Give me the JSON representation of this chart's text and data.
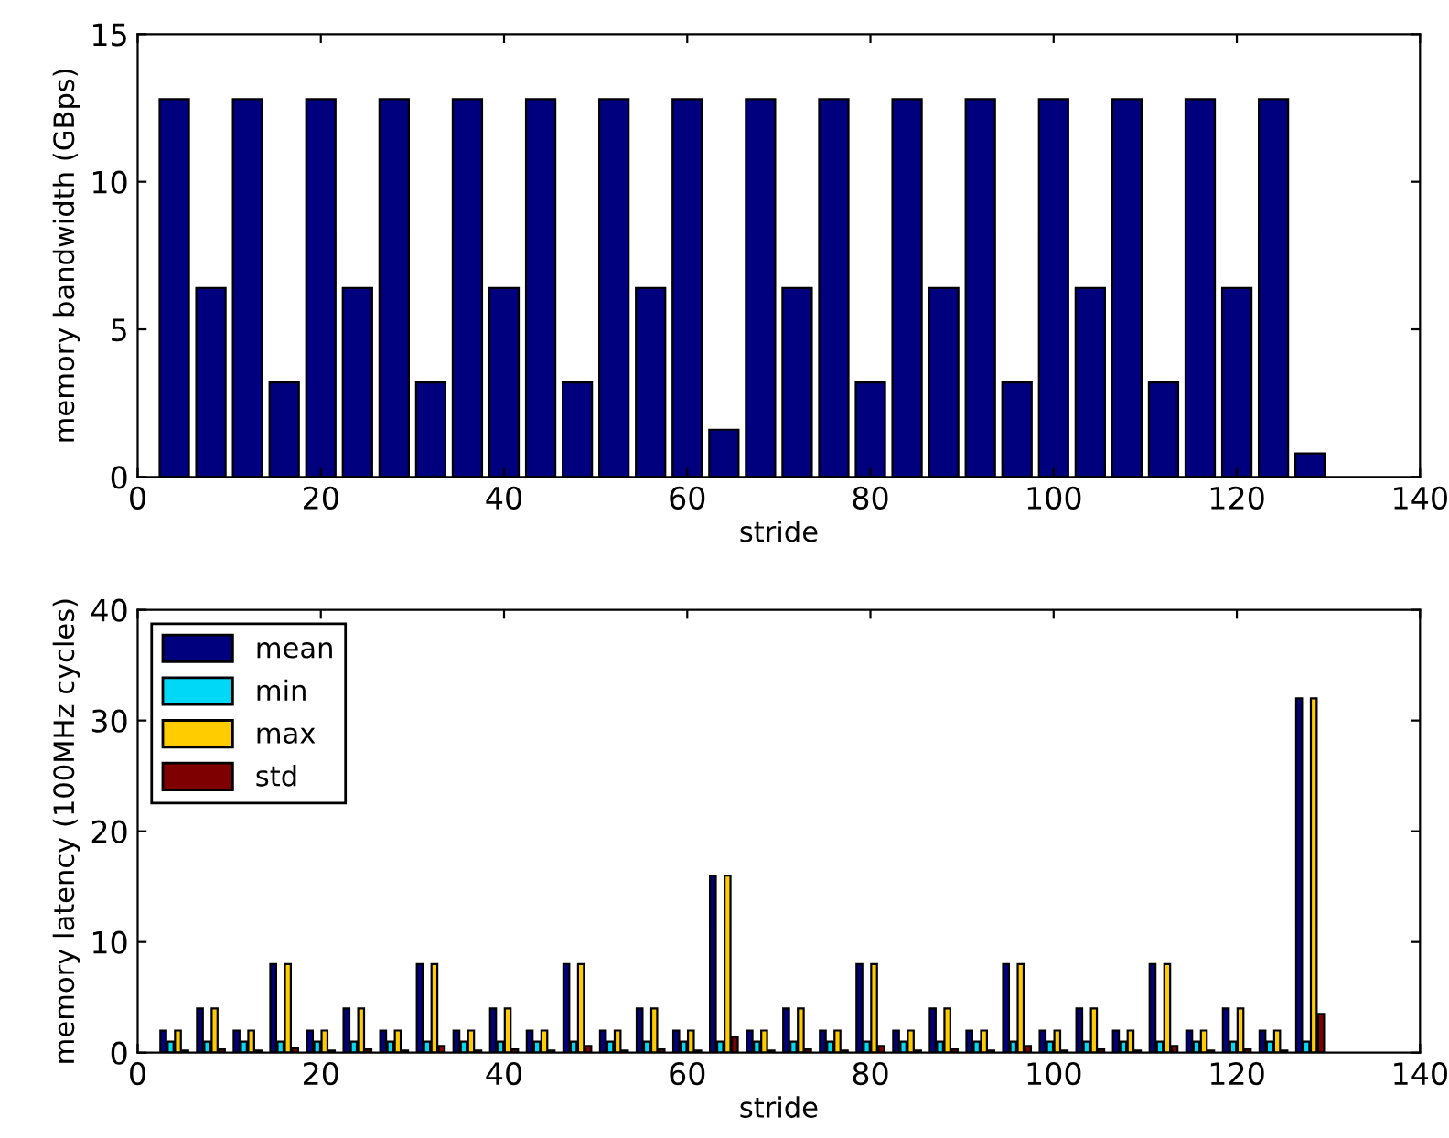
{
  "chart_data": [
    {
      "type": "bar",
      "xlabel": "stride",
      "ylabel": "memory bandwidth (GBps)",
      "x": [
        4,
        8,
        12,
        16,
        20,
        24,
        28,
        32,
        36,
        40,
        44,
        48,
        52,
        56,
        60,
        64,
        68,
        72,
        76,
        80,
        84,
        88,
        92,
        96,
        100,
        104,
        108,
        112,
        116,
        120,
        124,
        128
      ],
      "series": [
        {
          "color": "#00007f",
          "values": [
            12.8,
            6.4,
            12.8,
            3.2,
            12.8,
            6.4,
            12.8,
            3.2,
            12.8,
            6.4,
            12.8,
            3.2,
            12.8,
            6.4,
            12.8,
            1.6,
            12.8,
            6.4,
            12.8,
            3.2,
            12.8,
            6.4,
            12.8,
            3.2,
            12.8,
            6.4,
            12.8,
            3.2,
            12.8,
            6.4,
            12.8,
            0.8
          ]
        }
      ],
      "xlim": [
        0,
        140
      ],
      "xticks": [
        0,
        20,
        40,
        60,
        80,
        100,
        120,
        140
      ],
      "ylim": [
        0,
        15
      ],
      "yticks": [
        0,
        5,
        10,
        15
      ],
      "grid": false,
      "legend": false
    },
    {
      "type": "bar",
      "xlabel": "stride",
      "ylabel": "memory latency (100MHz cycles)",
      "x": [
        4,
        8,
        12,
        16,
        20,
        24,
        28,
        32,
        36,
        40,
        44,
        48,
        52,
        56,
        60,
        64,
        68,
        72,
        76,
        80,
        84,
        88,
        92,
        96,
        100,
        104,
        108,
        112,
        116,
        120,
        124,
        128
      ],
      "series": [
        {
          "name": "mean",
          "color": "#00007f",
          "values": [
            2,
            4,
            2,
            8,
            2,
            4,
            2,
            8,
            2,
            4,
            2,
            8,
            2,
            4,
            2,
            16,
            2,
            4,
            2,
            8,
            2,
            4,
            2,
            8,
            2,
            4,
            2,
            8,
            2,
            4,
            2,
            32
          ]
        },
        {
          "name": "min",
          "color": "#00d8f8",
          "values": [
            1,
            1,
            1,
            1,
            1,
            1,
            1,
            1,
            1,
            1,
            1,
            1,
            1,
            1,
            1,
            1,
            1,
            1,
            1,
            1,
            1,
            1,
            1,
            1,
            1,
            1,
            1,
            1,
            1,
            1,
            1,
            1
          ]
        },
        {
          "name": "max",
          "color": "#ffcc00",
          "values": [
            2,
            4,
            2,
            8,
            2,
            4,
            2,
            8,
            2,
            4,
            2,
            8,
            2,
            4,
            2,
            16,
            2,
            4,
            2,
            8,
            2,
            4,
            2,
            8,
            2,
            4,
            2,
            8,
            2,
            4,
            2,
            32
          ]
        },
        {
          "name": "std",
          "color": "#7f0000",
          "values": [
            0.2,
            0.3,
            0.2,
            0.4,
            0.2,
            0.3,
            0.2,
            0.6,
            0.2,
            0.3,
            0.2,
            0.6,
            0.2,
            0.3,
            0.2,
            1.4,
            0.2,
            0.3,
            0.2,
            0.6,
            0.2,
            0.3,
            0.2,
            0.6,
            0.2,
            0.3,
            0.2,
            0.6,
            0.2,
            0.3,
            0.2,
            3.5
          ]
        }
      ],
      "xlim": [
        0,
        140
      ],
      "xticks": [
        0,
        20,
        40,
        60,
        80,
        100,
        120,
        140
      ],
      "ylim": [
        0,
        40
      ],
      "yticks": [
        0,
        10,
        20,
        30,
        40
      ],
      "grid": false,
      "legend": "top left"
    }
  ]
}
